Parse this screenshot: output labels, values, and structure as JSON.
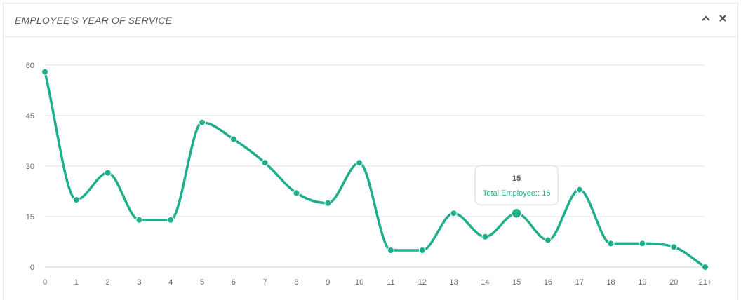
{
  "header": {
    "title": "EMPLOYEE'S YEAR OF SERVICE"
  },
  "tools": {
    "collapse_icon": "chevron-up-icon",
    "close_icon": "close-icon"
  },
  "colors": {
    "line": "#1fae8b",
    "grid": "#e6e6e6",
    "text": "#666666"
  },
  "chart_data": {
    "type": "line",
    "smooth": true,
    "categories": [
      "0",
      "1",
      "2",
      "3",
      "4",
      "5",
      "6",
      "7",
      "8",
      "9",
      "10",
      "11",
      "12",
      "13",
      "14",
      "15",
      "16",
      "17",
      "18",
      "19",
      "20",
      "21+"
    ],
    "series": [
      {
        "name": "Total Employee:",
        "values": [
          58,
          20,
          28,
          14,
          14,
          43,
          38,
          31,
          22,
          19,
          31,
          5,
          5,
          16,
          9,
          16,
          8,
          23,
          7,
          7,
          6,
          0
        ]
      }
    ],
    "yticks": [
      0,
      15,
      30,
      45,
      60
    ],
    "ylim": [
      0,
      60
    ],
    "grid": true,
    "legend": "none",
    "tooltip": {
      "category_index": 15,
      "title": "15",
      "label": "Total Employee:",
      "value_text": ": 16"
    }
  }
}
